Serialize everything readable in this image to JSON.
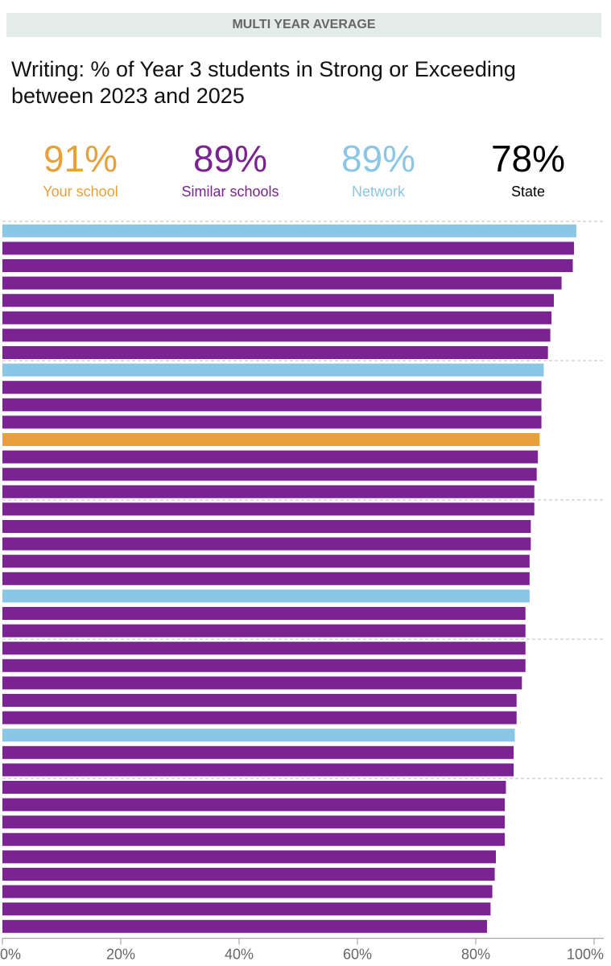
{
  "header": {
    "banner": "MULTI YEAR AVERAGE",
    "title": "Writing: % of Year 3 students in Strong or Exceeding between 2023 and 2025"
  },
  "kpis": [
    {
      "value": "91%",
      "label": "Your school",
      "color": "#e8a03a"
    },
    {
      "value": "89%",
      "label": "Similar schools",
      "color": "#7b2393"
    },
    {
      "value": "89%",
      "label": "Network",
      "color": "#8ac6e6"
    },
    {
      "value": "78%",
      "label": "State",
      "color": "#000000"
    }
  ],
  "colors": {
    "your_school": "#e8a03a",
    "similar_schools": "#7b2393",
    "network": "#8ac6e6",
    "state": "#000000",
    "gridline": "#bbbbbb",
    "axis_text": "#666666"
  },
  "chart_data": {
    "type": "bar",
    "orientation": "horizontal",
    "xlim": [
      0,
      100
    ],
    "xticks": [
      0,
      20,
      40,
      60,
      80,
      100
    ],
    "xtick_labels": [
      "0%",
      "20%",
      "40%",
      "60%",
      "80%",
      "100%"
    ],
    "grid": true,
    "bars": [
      {
        "group": "network",
        "value": 97.0
      },
      {
        "group": "similar_schools",
        "value": 96.6
      },
      {
        "group": "similar_schools",
        "value": 96.4
      },
      {
        "group": "similar_schools",
        "value": 94.5
      },
      {
        "group": "similar_schools",
        "value": 93.2
      },
      {
        "group": "similar_schools",
        "value": 92.8
      },
      {
        "group": "similar_schools",
        "value": 92.6
      },
      {
        "group": "similar_schools",
        "value": 92.2
      },
      {
        "group": "network",
        "value": 91.5
      },
      {
        "group": "similar_schools",
        "value": 91.1
      },
      {
        "group": "similar_schools",
        "value": 91.1
      },
      {
        "group": "similar_schools",
        "value": 91.1
      },
      {
        "group": "your_school",
        "value": 90.8
      },
      {
        "group": "similar_schools",
        "value": 90.5
      },
      {
        "group": "similar_schools",
        "value": 90.3
      },
      {
        "group": "similar_schools",
        "value": 89.9
      },
      {
        "group": "similar_schools",
        "value": 89.9
      },
      {
        "group": "similar_schools",
        "value": 89.3
      },
      {
        "group": "similar_schools",
        "value": 89.3
      },
      {
        "group": "similar_schools",
        "value": 89.1
      },
      {
        "group": "similar_schools",
        "value": 89.1
      },
      {
        "group": "network",
        "value": 89.1
      },
      {
        "group": "similar_schools",
        "value": 88.4
      },
      {
        "group": "similar_schools",
        "value": 88.4
      },
      {
        "group": "similar_schools",
        "value": 88.4
      },
      {
        "group": "similar_schools",
        "value": 88.4
      },
      {
        "group": "similar_schools",
        "value": 87.8
      },
      {
        "group": "similar_schools",
        "value": 86.9
      },
      {
        "group": "similar_schools",
        "value": 86.9
      },
      {
        "group": "network",
        "value": 86.6
      },
      {
        "group": "similar_schools",
        "value": 86.4
      },
      {
        "group": "similar_schools",
        "value": 86.4
      },
      {
        "group": "similar_schools",
        "value": 85.1
      },
      {
        "group": "similar_schools",
        "value": 84.9
      },
      {
        "group": "similar_schools",
        "value": 84.9
      },
      {
        "group": "similar_schools",
        "value": 84.9
      },
      {
        "group": "similar_schools",
        "value": 83.4
      },
      {
        "group": "similar_schools",
        "value": 83.2
      },
      {
        "group": "similar_schools",
        "value": 82.8
      },
      {
        "group": "similar_schools",
        "value": 82.5
      },
      {
        "group": "similar_schools",
        "value": 81.9
      }
    ]
  }
}
